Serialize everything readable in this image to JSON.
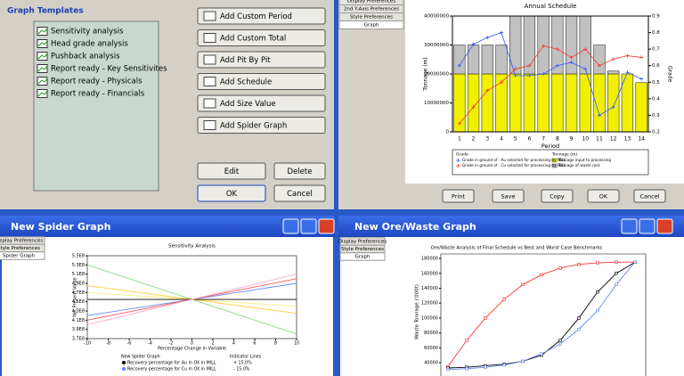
{
  "templates": {
    "title": "Graph Templates",
    "items": [
      "Sensitivity analysis",
      "Head grade analysis",
      "Pushback analysis",
      "Report ready - Key Sensitivites",
      "Report ready - Physicals",
      "Report ready - Financials"
    ],
    "buttons": [
      "Add Custom Period",
      "Add Custom Total",
      "Add Pit By Pit",
      "Add Schedule",
      "Add Size Value",
      "Add Spider Graph"
    ],
    "actions": [
      "Edit",
      "Delete",
      "OK",
      "Cancel"
    ]
  },
  "schedule_panel": {
    "tabs": [
      "Display Preferences",
      "2nd Y-Axis Preferences",
      "Style Preferences",
      "Graph"
    ],
    "buttons": [
      "Print",
      "Save",
      "Copy",
      "OK",
      "Cancel"
    ]
  },
  "spider_window": {
    "title": "New Spider Graph",
    "tabs": [
      "Display Preferences",
      "Style Preferences",
      "Spider Graph"
    ]
  },
  "orewaste_window": {
    "title": "New Ore/Waste Graph",
    "tabs": [
      "Display Preferences",
      "Style Preferences",
      "Graph"
    ]
  },
  "chart_data": [
    {
      "type": "bar",
      "title": "Annual Schedule",
      "xlabel": "Period",
      "ylabel": "Tonnage (m)",
      "y2label": "Grade",
      "stacked": true,
      "categories": [
        "1",
        "2",
        "3",
        "4",
        "5",
        "6",
        "7",
        "8",
        "9",
        "10",
        "11",
        "12",
        "13",
        "14"
      ],
      "ylim": [
        0,
        40000000
      ],
      "yticks": [
        0,
        10000000,
        20000000,
        30000000,
        40000000
      ],
      "y2lim": [
        0.2,
        0.9
      ],
      "y2ticks": [
        0.2,
        0.3,
        0.4,
        0.5,
        0.6,
        0.7,
        0.8,
        0.9
      ],
      "legend_headers": [
        "Grade",
        "Tonnage (m)"
      ],
      "series": [
        {
          "name": "Tonnage input to processing",
          "color": "#f0f000",
          "values": [
            20000000,
            20000000,
            20000000,
            20000000,
            20000000,
            20000000,
            20000000,
            20000000,
            20000000,
            20000000,
            20000000,
            20000000,
            20000000,
            17000000
          ]
        },
        {
          "name": "Tonnage of waste rock",
          "color": "#c0c0c0",
          "values": [
            10000000,
            10000000,
            10000000,
            10000000,
            20000000,
            20000000,
            20000000,
            20000000,
            20000000,
            20000000,
            10000000,
            1000000,
            0,
            0
          ]
        },
        {
          "name": "Grade in ground of : Au selected for processing by MILL",
          "color": "#3355ff",
          "type": "line",
          "axis": "y2",
          "values": [
            0.6,
            0.73,
            0.77,
            0.8,
            0.54,
            0.54,
            0.55,
            0.6,
            0.62,
            0.58,
            0.3,
            0.35,
            0.56,
            0.52
          ]
        },
        {
          "name": "Grade in ground of : Cu selected for processing by MILL",
          "color": "#ff3333",
          "type": "line",
          "axis": "y2",
          "values": [
            0.25,
            0.35,
            0.45,
            0.5,
            0.58,
            0.6,
            0.72,
            0.7,
            0.65,
            0.7,
            0.6,
            0.64,
            0.66,
            0.65
          ]
        }
      ]
    },
    {
      "type": "line",
      "title": "Sensitivity Analysis",
      "xlabel": "Percentage Change in Variable",
      "ylabel": "Net Present Value",
      "x": [
        -10,
        0,
        10
      ],
      "xlim": [
        -10,
        10
      ],
      "xticks": [
        -10,
        -8,
        -6,
        -4,
        -2,
        0,
        2,
        4,
        6,
        8,
        10
      ],
      "ylim": [
        370000000,
        550000000
      ],
      "yticks": [
        {
          "value": 370000000,
          "label": "3.7E8"
        },
        {
          "value": 390000000,
          "label": "3.9E8"
        },
        {
          "value": 410000000,
          "label": "4.1E8"
        },
        {
          "value": 430000000,
          "label": "4.3E8"
        },
        {
          "value": 450000000,
          "label": "4.5E8"
        },
        {
          "value": 470000000,
          "label": "4.7E8"
        },
        {
          "value": 490000000,
          "label": "4.9E8"
        },
        {
          "value": 510000000,
          "label": "5.1E8"
        },
        {
          "value": 530000000,
          "label": "5.3E8"
        },
        {
          "value": 550000000,
          "label": "5.5E8"
        }
      ],
      "legend_title": "New Spider Graph",
      "indicator_title": "Indicator Lines",
      "indicator_labels": [
        "+ 15.0%",
        "- 15.0%"
      ],
      "series": [
        {
          "color": "#88dd88",
          "values": [
            530000000,
            455000000,
            380000000
          ]
        },
        {
          "color": "#ffcc33",
          "values": [
            485000000,
            455000000,
            425000000
          ]
        },
        {
          "color": "#ffee88",
          "values": [
            470000000,
            455000000,
            440000000
          ]
        },
        {
          "name": "Recovery percentage for Au in OX in MILL",
          "color": "#000000",
          "values": [
            455000000,
            455000000,
            455000000
          ]
        },
        {
          "name": "Recovery percentage for Cu in OX in MILL",
          "color": "#6688ff",
          "values": [
            420000000,
            455000000,
            490000000
          ]
        },
        {
          "color": "#ff5555",
          "values": [
            410000000,
            455000000,
            500000000
          ]
        },
        {
          "color": "#ffaacc",
          "values": [
            400000000,
            455000000,
            510000000
          ]
        }
      ]
    },
    {
      "type": "line",
      "title": "Ore/Waste Analysis of Final Schedule vs Best and Worst Case Benchmarks",
      "ylabel": "Waste Tonnage ('000t)",
      "ylim": [
        30000,
        186000
      ],
      "yticks": [
        40000,
        60000,
        80000,
        100000,
        120000,
        140000,
        160000,
        180000
      ],
      "series": [
        {
          "color": "#ff3333",
          "values": [
            35000,
            70000,
            100000,
            125000,
            145000,
            158000,
            167000,
            172000,
            174000,
            175000,
            175000
          ]
        },
        {
          "color": "#000000",
          "values": [
            33000,
            34000,
            36000,
            38000,
            42000,
            50000,
            70000,
            100000,
            135000,
            160000,
            175000
          ]
        },
        {
          "color": "#6688ee",
          "values": [
            31000,
            32000,
            34000,
            37000,
            42000,
            52000,
            65000,
            85000,
            110000,
            145000,
            175000
          ]
        }
      ]
    }
  ]
}
